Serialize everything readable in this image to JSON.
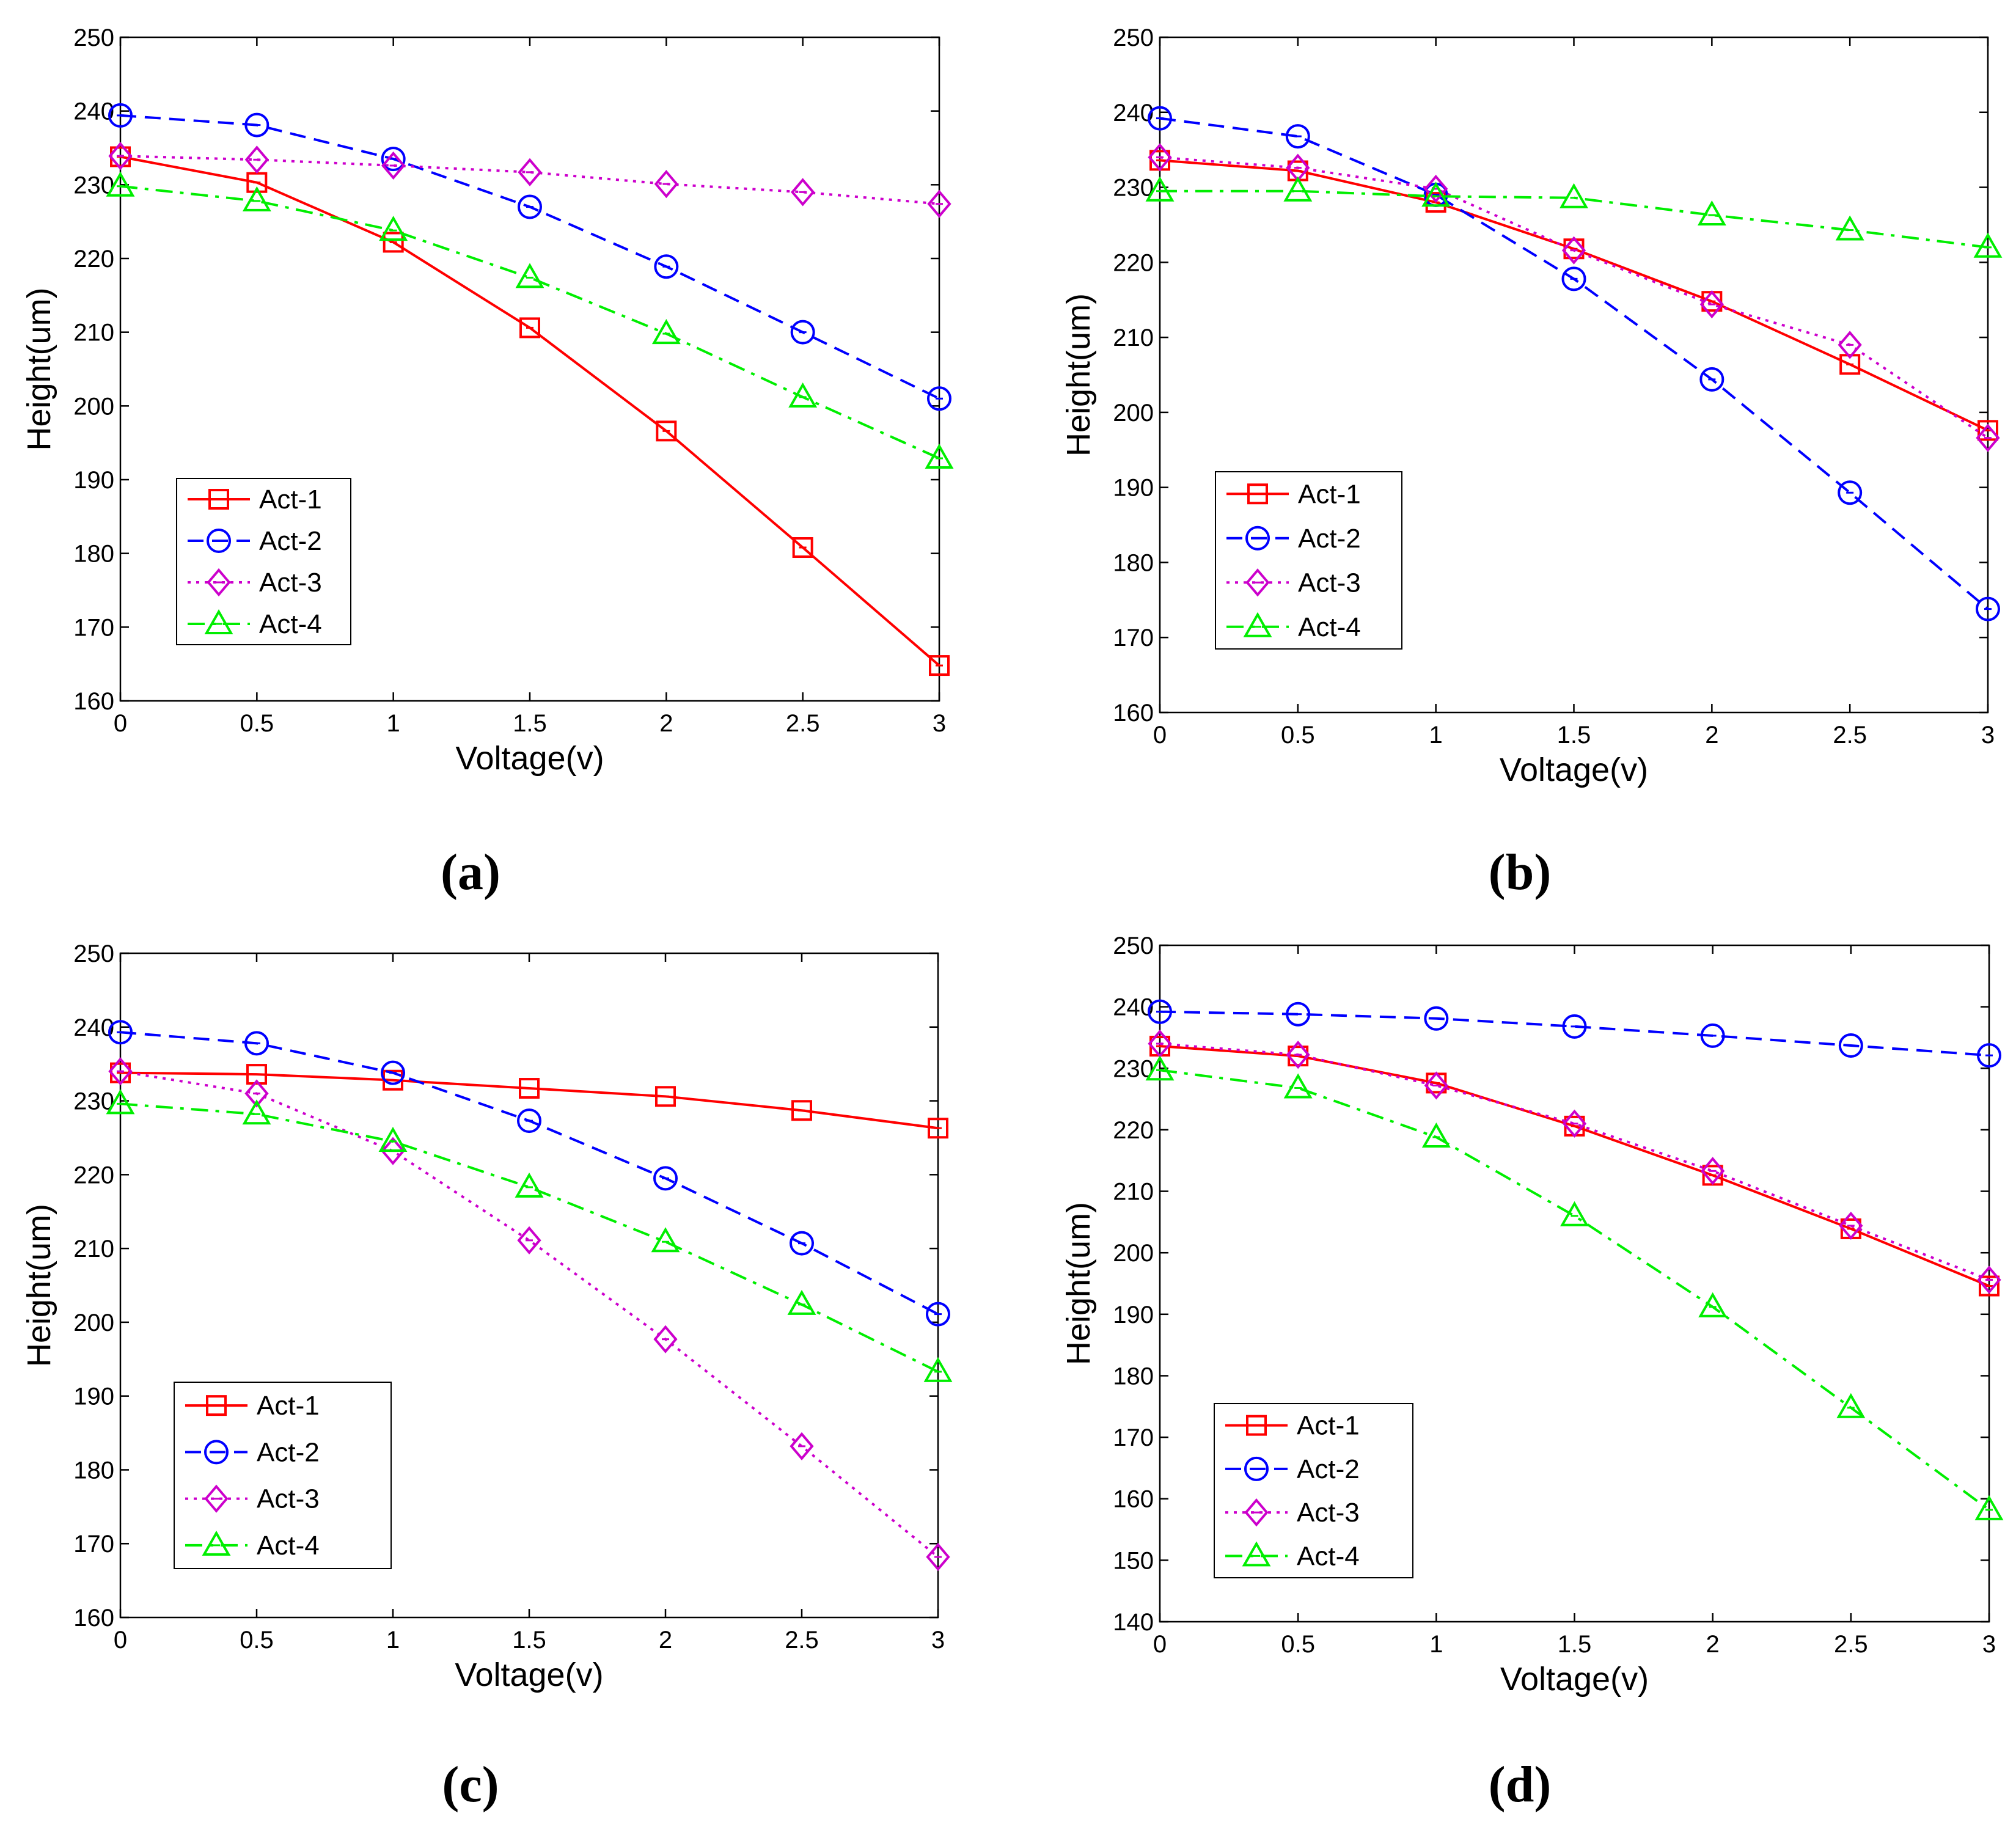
{
  "chart_data": [
    {
      "type": "line",
      "caption": "(a)",
      "xlabel": "Voltage(v)",
      "ylabel": "Height(um)",
      "xlim": [
        0,
        3
      ],
      "ylim": [
        160,
        250
      ],
      "xticks": [
        "0",
        "0.5",
        "1",
        "1.5",
        "2",
        "2.5",
        "3"
      ],
      "yticks": [
        "160",
        "170",
        "180",
        "190",
        "200",
        "210",
        "220",
        "230",
        "240",
        "250"
      ],
      "x": [
        0,
        0.5,
        1,
        1.5,
        2,
        2.5,
        3
      ],
      "legend_position": "lower-left",
      "series": [
        {
          "name": "Act-1",
          "color": "#ff0000",
          "marker": "square",
          "dash": "solid",
          "values": [
            233.8,
            230.3,
            222.2,
            210.6,
            196.6,
            180.8,
            164.8
          ]
        },
        {
          "name": "Act-2",
          "color": "#0000ff",
          "marker": "circle",
          "dash": "dashed",
          "values": [
            239.4,
            238.1,
            233.5,
            227.0,
            218.9,
            210.0,
            201.0
          ]
        },
        {
          "name": "Act-3",
          "color": "#cc00cc",
          "marker": "diamond",
          "dash": "dotted",
          "values": [
            233.9,
            233.4,
            232.6,
            231.7,
            230.1,
            229.0,
            227.4
          ]
        },
        {
          "name": "Act-4",
          "color": "#00ee00",
          "marker": "triangle",
          "dash": "dashdot",
          "values": [
            229.8,
            227.8,
            223.8,
            217.4,
            209.8,
            201.2,
            192.9
          ]
        }
      ]
    },
    {
      "type": "line",
      "caption": "(b)",
      "xlabel": "Voltage(v)",
      "ylabel": "Height(um)",
      "xlim": [
        0,
        3
      ],
      "ylim": [
        160,
        250
      ],
      "xticks": [
        "0",
        "0.5",
        "1",
        "1.5",
        "2",
        "2.5",
        "3"
      ],
      "yticks": [
        "160",
        "170",
        "180",
        "190",
        "200",
        "210",
        "220",
        "230",
        "240",
        "250"
      ],
      "x": [
        0,
        0.5,
        1,
        1.5,
        2,
        2.5,
        3
      ],
      "legend_position": "lower-left",
      "series": [
        {
          "name": "Act-1",
          "color": "#ff0000",
          "marker": "square",
          "dash": "solid",
          "values": [
            233.6,
            232.2,
            228.0,
            221.8,
            214.8,
            206.4,
            197.6
          ]
        },
        {
          "name": "Act-2",
          "color": "#0000ff",
          "marker": "circle",
          "dash": "dashed",
          "values": [
            239.2,
            236.8,
            229.0,
            217.8,
            204.4,
            189.3,
            173.8
          ]
        },
        {
          "name": "Act-3",
          "color": "#cc00cc",
          "marker": "diamond",
          "dash": "dotted",
          "values": [
            234.0,
            232.6,
            229.8,
            221.6,
            214.4,
            209.0,
            196.6
          ]
        },
        {
          "name": "Act-4",
          "color": "#00ee00",
          "marker": "triangle",
          "dash": "dashdot",
          "values": [
            229.5,
            229.5,
            228.8,
            228.6,
            226.3,
            224.3,
            222.0
          ]
        }
      ]
    },
    {
      "type": "line",
      "caption": "(c)",
      "xlabel": "Voltage(v)",
      "ylabel": "Height(um)",
      "xlim": [
        0,
        3
      ],
      "ylim": [
        160,
        250
      ],
      "xticks": [
        "0",
        "0.5",
        "1",
        "1.5",
        "2",
        "2.5",
        "3"
      ],
      "yticks": [
        "160",
        "170",
        "180",
        "190",
        "200",
        "210",
        "220",
        "230",
        "240",
        "250"
      ],
      "x": [
        0,
        0.5,
        1,
        1.5,
        2,
        2.5,
        3
      ],
      "legend_position": "lower-left",
      "series": [
        {
          "name": "Act-1",
          "color": "#ff0000",
          "marker": "square",
          "dash": "solid",
          "values": [
            233.8,
            233.6,
            232.8,
            231.7,
            230.6,
            228.7,
            226.3
          ]
        },
        {
          "name": "Act-2",
          "color": "#0000ff",
          "marker": "circle",
          "dash": "dashed",
          "values": [
            239.3,
            237.8,
            233.8,
            227.3,
            219.5,
            210.7,
            201.1
          ]
        },
        {
          "name": "Act-3",
          "color": "#cc00cc",
          "marker": "diamond",
          "dash": "dotted",
          "values": [
            234.0,
            231.0,
            223.2,
            211.1,
            197.7,
            183.2,
            168.2
          ]
        },
        {
          "name": "Act-4",
          "color": "#00ee00",
          "marker": "triangle",
          "dash": "dashdot",
          "values": [
            229.6,
            228.2,
            224.5,
            218.3,
            210.9,
            202.4,
            193.3
          ]
        }
      ]
    },
    {
      "type": "line",
      "caption": "(d)",
      "xlabel": "Voltage(v)",
      "ylabel": "Height(um)",
      "xlim": [
        0,
        3
      ],
      "ylim": [
        140,
        250
      ],
      "xticks": [
        "0",
        "0.5",
        "1",
        "1.5",
        "2",
        "2.5",
        "3"
      ],
      "yticks": [
        "140",
        "150",
        "160",
        "170",
        "180",
        "190",
        "200",
        "210",
        "220",
        "230",
        "240",
        "250"
      ],
      "x": [
        0,
        0.5,
        1,
        1.5,
        2,
        2.5,
        3
      ],
      "legend_position": "lower-left",
      "series": [
        {
          "name": "Act-1",
          "color": "#ff0000",
          "marker": "square",
          "dash": "solid",
          "values": [
            233.6,
            232.0,
            227.6,
            220.6,
            212.6,
            203.9,
            194.6
          ]
        },
        {
          "name": "Act-2",
          "color": "#0000ff",
          "marker": "circle",
          "dash": "dashed",
          "values": [
            239.2,
            238.8,
            238.1,
            236.8,
            235.3,
            233.7,
            232.1
          ]
        },
        {
          "name": "Act-3",
          "color": "#cc00cc",
          "marker": "diamond",
          "dash": "dotted",
          "values": [
            234.0,
            232.2,
            227.2,
            221.0,
            213.3,
            204.4,
            195.6
          ]
        },
        {
          "name": "Act-4",
          "color": "#00ee00",
          "marker": "triangle",
          "dash": "dashdot",
          "values": [
            229.7,
            226.8,
            218.8,
            206.0,
            191.2,
            174.8,
            158.2
          ]
        }
      ]
    }
  ]
}
